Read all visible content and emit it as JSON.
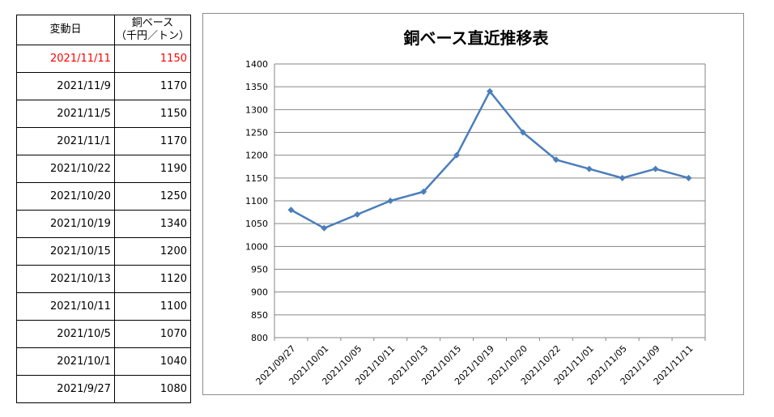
{
  "table": {
    "header_date": "変動日",
    "header_price_line1": "銅ベース",
    "header_price_line2": "（千円／トン）",
    "rows": [
      {
        "date": "2021/11/11",
        "price": "1150"
      },
      {
        "date": "2021/11/9",
        "price": "1170"
      },
      {
        "date": "2021/11/5",
        "price": "1150"
      },
      {
        "date": "2021/11/1",
        "price": "1170"
      },
      {
        "date": "2021/10/22",
        "price": "1190"
      },
      {
        "date": "2021/10/20",
        "price": "1250"
      },
      {
        "date": "2021/10/19",
        "price": "1340"
      },
      {
        "date": "2021/10/15",
        "price": "1200"
      },
      {
        "date": "2021/10/13",
        "price": "1120"
      },
      {
        "date": "2021/10/11",
        "price": "1100"
      },
      {
        "date": "2021/10/5",
        "price": "1070"
      },
      {
        "date": "2021/10/1",
        "price": "1040"
      },
      {
        "date": "2021/9/27",
        "price": "1080"
      }
    ],
    "highlight_color": "#ff0000"
  },
  "chart_data": {
    "type": "line",
    "title": "銅ベース直近推移表",
    "xlabel": "",
    "ylabel": "",
    "categories": [
      "2021/09/27",
      "2021/10/01",
      "2021/10/05",
      "2021/10/11",
      "2021/10/13",
      "2021/10/15",
      "2021/10/19",
      "2021/10/20",
      "2021/10/22",
      "2021/11/01",
      "2021/11/05",
      "2021/11/09",
      "2021/11/11"
    ],
    "series": [
      {
        "values": [
          1080,
          1040,
          1070,
          1100,
          1120,
          1200,
          1340,
          1250,
          1190,
          1170,
          1150,
          1170,
          1150
        ]
      }
    ],
    "ylim": [
      800,
      1400
    ],
    "yticks": [
      800,
      850,
      900,
      950,
      1000,
      1050,
      1100,
      1150,
      1200,
      1250,
      1300,
      1350,
      1400
    ],
    "grid": "horizontal",
    "legend": "none",
    "line_color": "#4a7ebb",
    "grid_color": "#868686"
  }
}
